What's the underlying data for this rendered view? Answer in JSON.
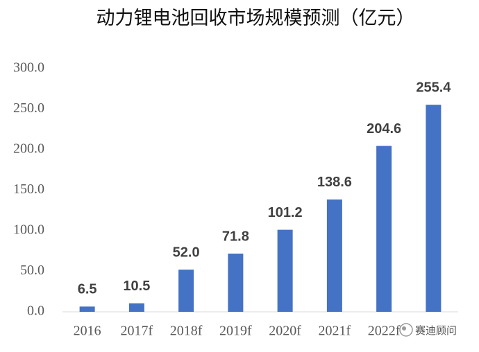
{
  "chart_data": {
    "type": "bar",
    "title": "动力锂电池回收市场规模预测（亿元）",
    "categories": [
      "2016",
      "2017f",
      "2018f",
      "2019f",
      "2020f",
      "2021f",
      "2022f",
      null
    ],
    "values": [
      6.5,
      10.5,
      52.0,
      71.8,
      101.2,
      138.6,
      204.6,
      255.4
    ],
    "value_labels": [
      "6.5",
      "10.5",
      "52.0",
      "71.8",
      "101.2",
      "138.6",
      "204.6",
      "255.4"
    ],
    "color": "#4472c4",
    "ylim": [
      0,
      300
    ],
    "yticks": [
      {
        "value": 0,
        "label": "0.0"
      },
      {
        "value": 50,
        "label": "50.0"
      },
      {
        "value": 100,
        "label": "100.0"
      },
      {
        "value": 150,
        "label": "150.0"
      },
      {
        "value": 200,
        "label": "200.0"
      },
      {
        "value": 250,
        "label": "250.0"
      },
      {
        "value": 300,
        "label": "300.0"
      }
    ],
    "grid": false
  },
  "watermark": "赛迪顾问"
}
